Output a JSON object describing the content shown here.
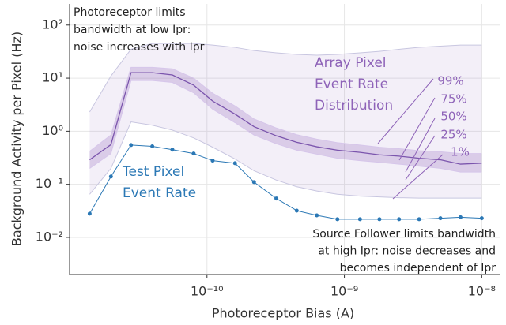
{
  "chart_data": {
    "type": "line",
    "x_label": "Photoreceptor Bias (A)",
    "y_label": "Background Activity per Pixel (Hz)",
    "x_log": true,
    "y_log": true,
    "grid": true,
    "xlim": [
      1e-11,
      1.35e-08
    ],
    "ylim": [
      0.002,
      250
    ],
    "xticks": [
      {
        "value": 1e-10,
        "label": "10⁻¹⁰"
      },
      {
        "value": 1e-09,
        "label": "10⁻⁹"
      },
      {
        "value": 1e-08,
        "label": "10⁻⁸"
      }
    ],
    "yticks": [
      {
        "value": 0.01,
        "label": "10⁻²"
      },
      {
        "value": 0.1,
        "label": "10⁻¹"
      },
      {
        "value": 1,
        "label": "10⁰"
      },
      {
        "value": 10,
        "label": "10¹"
      },
      {
        "value": 100,
        "label": "10²"
      }
    ],
    "x": [
      1.4e-11,
      2e-11,
      2.8e-11,
      4e-11,
      5.6e-11,
      8e-11,
      1.1e-10,
      1.6e-10,
      2.2e-10,
      3.2e-10,
      4.5e-10,
      6.3e-10,
      8.9e-10,
      1.3e-09,
      1.8e-09,
      2.5e-09,
      3.5e-09,
      5e-09,
      7e-09,
      1e-08
    ],
    "series": [
      {
        "name": "99%",
        "color": "#c8c6e0",
        "values": [
          2.3,
          11,
          35,
          45,
          45,
          45,
          42,
          38,
          33,
          30,
          28,
          27,
          28,
          30,
          32,
          35,
          38,
          40,
          42,
          42
        ]
      },
      {
        "name": "75%",
        "color": "#d6c6ea",
        "values": [
          0.42,
          0.85,
          16,
          16,
          15,
          10,
          5.2,
          3,
          1.7,
          1.15,
          0.86,
          0.71,
          0.61,
          0.55,
          0.5,
          0.47,
          0.43,
          0.41,
          0.38,
          0.38
        ]
      },
      {
        "name": "50%",
        "color": "#7b55ad",
        "values": [
          0.29,
          0.56,
          12.7,
          12.7,
          11.5,
          7.4,
          3.7,
          2.1,
          1.22,
          0.82,
          0.62,
          0.51,
          0.44,
          0.4,
          0.36,
          0.34,
          0.31,
          0.29,
          0.24,
          0.25
        ]
      },
      {
        "name": "25%",
        "color": "#d6c6ea",
        "values": [
          0.2,
          0.38,
          9,
          9,
          8.3,
          5.3,
          2.6,
          1.45,
          0.85,
          0.58,
          0.44,
          0.37,
          0.31,
          0.28,
          0.26,
          0.24,
          0.22,
          0.2,
          0.17,
          0.17
        ]
      },
      {
        "name": "1%",
        "color": "#c8c6e0",
        "values": [
          0.065,
          0.2,
          1.5,
          1.3,
          1.05,
          0.75,
          0.5,
          0.3,
          0.18,
          0.12,
          0.09,
          0.075,
          0.065,
          0.06,
          0.058,
          0.056,
          0.055,
          0.055,
          0.055,
          0.055
        ]
      },
      {
        "name_lines": [
          "Test Pixel",
          "Event Rate"
        ],
        "color": "#2b78b5",
        "values": [
          0.028,
          0.14,
          0.55,
          0.52,
          0.45,
          0.38,
          0.28,
          0.25,
          0.11,
          0.054,
          0.032,
          0.026,
          0.022,
          0.022,
          0.022,
          0.022,
          0.022,
          0.023,
          0.024,
          0.023
        ]
      }
    ],
    "distribution_label": [
      "Array Pixel",
      "Event Rate",
      "Distribution"
    ],
    "annotations": [
      [
        "Photoreceptor limits",
        "bandwidth at low Ipr:",
        "noise increases with Ipr"
      ],
      [
        "Source Follower limits bandwidth",
        "at high Ipr: noise decreases and",
        "becomes independent of Ipr"
      ]
    ]
  }
}
